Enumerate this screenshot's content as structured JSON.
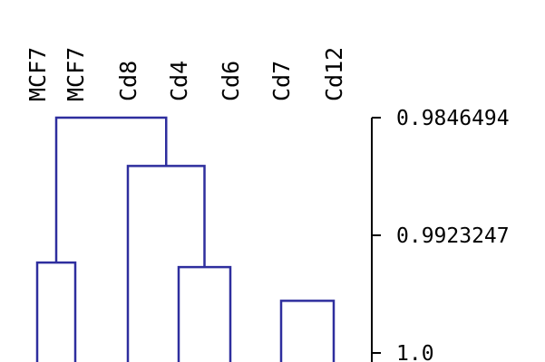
{
  "diagram": {
    "type": "dendrogram",
    "line_color": "#2e2e9e",
    "axis_color": "#000000",
    "leaves": [
      "MCF7",
      "MCF7",
      "Cd8",
      "Cd4",
      "Cd6",
      "Cd7",
      "Cd12"
    ],
    "axis": {
      "ticks": [
        {
          "value": 0.9846494,
          "label": "0.9846494"
        },
        {
          "value": 0.9923247,
          "label": "0.9923247"
        },
        {
          "value": 1.0,
          "label": "1.0"
        }
      ],
      "min": 0.9846494,
      "max": 1.0
    },
    "merges": [
      {
        "left": 0,
        "right": 1,
        "height": 0.9941
      },
      {
        "left": 5,
        "right": 6,
        "height": 0.9966
      },
      {
        "left": 3,
        "right": 4,
        "height": 0.9944
      },
      {
        "left": 2,
        "right": 3,
        "height": 0.9878
      },
      {
        "left": 0,
        "right": 2,
        "height": 0.9846494
      }
    ]
  }
}
